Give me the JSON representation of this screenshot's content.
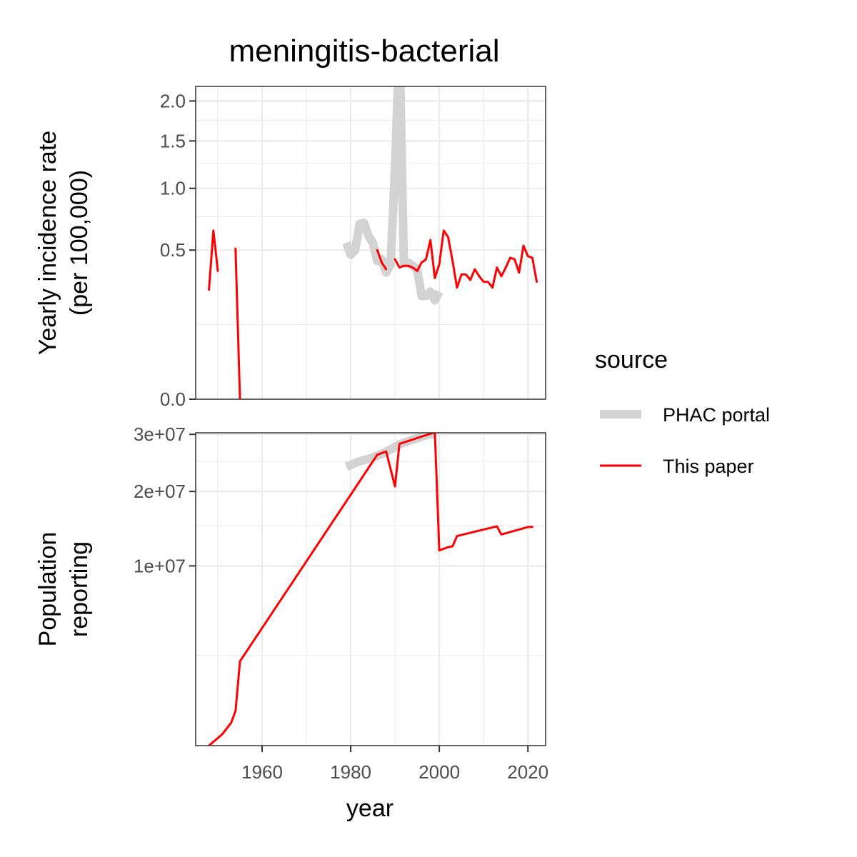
{
  "chart_data": {
    "type": "line",
    "title": "meningitis-bacterial",
    "xlabel": "year",
    "xlim": [
      1945,
      2024
    ],
    "x_ticks": [
      1960,
      1980,
      2000,
      2020
    ],
    "x_minor_ticks": [
      1950,
      1970,
      1990,
      2010
    ],
    "grid": true,
    "legend": {
      "title": "source",
      "placement": "right",
      "entries": [
        {
          "label": "PHAC portal",
          "color": "#d3d3d3",
          "style": "thick"
        },
        {
          "label": "This paper",
          "color": "#ff0000",
          "style": "thin"
        }
      ]
    },
    "panels": [
      {
        "id": "incidence",
        "ylabel_lines": [
          "Yearly incidence rate",
          "(per 100,000)"
        ],
        "y_scale": "sqrt",
        "ylim": [
          0,
          2.2
        ],
        "y_ticks": [
          {
            "value": 0.0,
            "label": "0.0"
          },
          {
            "value": 0.5,
            "label": "0.5"
          },
          {
            "value": 1.0,
            "label": "1.0"
          },
          {
            "value": 1.5,
            "label": "1.5"
          },
          {
            "value": 2.0,
            "label": "2.0"
          }
        ],
        "y_minor_ticks": [
          0.125,
          0.75,
          1.25,
          1.75
        ],
        "series": [
          {
            "name": "PHAC portal",
            "color": "#d3d3d3",
            "segments": [
              [
                [
                  1979,
                  0.55
                ],
                [
                  1980,
                  0.47
                ],
                [
                  1981,
                  0.5
                ],
                [
                  1982,
                  0.69
                ],
                [
                  1983,
                  0.7
                ],
                [
                  1984,
                  0.6
                ],
                [
                  1985,
                  0.55
                ],
                [
                  1986,
                  0.43
                ],
                [
                  1987,
                  0.44
                ],
                [
                  1988,
                  0.36
                ],
                [
                  1989,
                  0.41
                ],
                [
                  1990,
                  1.2
                ],
                [
                  1991,
                  2.9
                ],
                [
                  1992,
                  0.42
                ],
                [
                  1993,
                  0.42
                ],
                [
                  1994,
                  0.4
                ],
                [
                  1995,
                  0.38
                ],
                [
                  1996,
                  0.24
                ],
                [
                  1997,
                  0.24
                ],
                [
                  1998,
                  0.26
                ],
                [
                  1999,
                  0.22
                ],
                [
                  2000,
                  0.26
                ]
              ]
            ]
          },
          {
            "name": "This paper",
            "color": "#ff0000",
            "segments": [
              [
                [
                  1948,
                  0.27
                ],
                [
                  1949,
                  0.64
                ],
                [
                  1950,
                  0.37
                ]
              ],
              [
                [
                  1954,
                  0.51
                ],
                [
                  1955,
                  0.0
                ]
              ],
              [
                [
                  1986,
                  0.5
                ],
                [
                  1987,
                  0.42
                ],
                [
                  1988,
                  0.38
                ]
              ],
              [
                [
                  1990,
                  0.44
                ],
                [
                  1991,
                  0.39
                ],
                [
                  1992,
                  0.4
                ],
                [
                  1993,
                  0.4
                ],
                [
                  1994,
                  0.39
                ],
                [
                  1995,
                  0.37
                ],
                [
                  1996,
                  0.42
                ],
                [
                  1997,
                  0.44
                ],
                [
                  1998,
                  0.57
                ],
                [
                  1999,
                  0.33
                ],
                [
                  2000,
                  0.41
                ],
                [
                  2001,
                  0.64
                ],
                [
                  2002,
                  0.59
                ],
                [
                  2003,
                  0.43
                ],
                [
                  2004,
                  0.28
                ],
                [
                  2005,
                  0.35
                ],
                [
                  2006,
                  0.35
                ],
                [
                  2007,
                  0.32
                ],
                [
                  2008,
                  0.38
                ],
                [
                  2009,
                  0.34
                ],
                [
                  2010,
                  0.31
                ],
                [
                  2011,
                  0.31
                ],
                [
                  2012,
                  0.28
                ],
                [
                  2013,
                  0.39
                ],
                [
                  2014,
                  0.34
                ],
                [
                  2015,
                  0.39
                ],
                [
                  2016,
                  0.45
                ],
                [
                  2017,
                  0.44
                ],
                [
                  2018,
                  0.36
                ],
                [
                  2019,
                  0.53
                ],
                [
                  2020,
                  0.46
                ],
                [
                  2021,
                  0.45
                ],
                [
                  2022,
                  0.31
                ]
              ]
            ]
          }
        ]
      },
      {
        "id": "population",
        "ylabel_lines": [
          "Population",
          "reporting"
        ],
        "y_scale": "sqrt",
        "ylim": [
          0,
          30300000
        ],
        "y_ticks": [
          {
            "value": 10000000,
            "label": "1e+07"
          },
          {
            "value": 20000000,
            "label": "2e+07"
          },
          {
            "value": 30000000,
            "label": "3e+07"
          }
        ],
        "y_minor_ticks": [
          2500000,
          15000000,
          25000000
        ],
        "series": [
          {
            "name": "PHAC portal",
            "color": "#d3d3d3",
            "segments": [
              [
                [
                  1979,
                  24100000
                ],
                [
                  1982,
                  25000000
                ],
                [
                  1985,
                  25700000
                ],
                [
                  1988,
                  26700000
                ],
                [
                  1991,
                  28100000
                ],
                [
                  1994,
                  29000000
                ],
                [
                  1997,
                  29800000
                ],
                [
                  1999,
                  30300000
                ]
              ]
            ]
          },
          {
            "name": "This paper",
            "color": "#ff0000",
            "segments": [
              [
                [
                  1948,
                  0
                ],
                [
                  1951,
                  40000
                ],
                [
                  1953,
                  160000
                ],
                [
                  1954,
                  370000
                ],
                [
                  1955,
                  2200000
                ],
                [
                  1986,
                  26200000
                ],
                [
                  1988,
                  26800000
                ],
                [
                  1990,
                  20800000
                ],
                [
                  1991,
                  28200000
                ],
                [
                  1999,
                  30400000
                ],
                [
                  2000,
                  11800000
                ],
                [
                  2002,
                  12200000
                ],
                [
                  2003,
                  12300000
                ],
                [
                  2004,
                  13600000
                ],
                [
                  2013,
                  14900000
                ],
                [
                  2014,
                  13800000
                ],
                [
                  2020,
                  14800000
                ],
                [
                  2021,
                  14800000
                ]
              ]
            ]
          }
        ]
      }
    ]
  }
}
